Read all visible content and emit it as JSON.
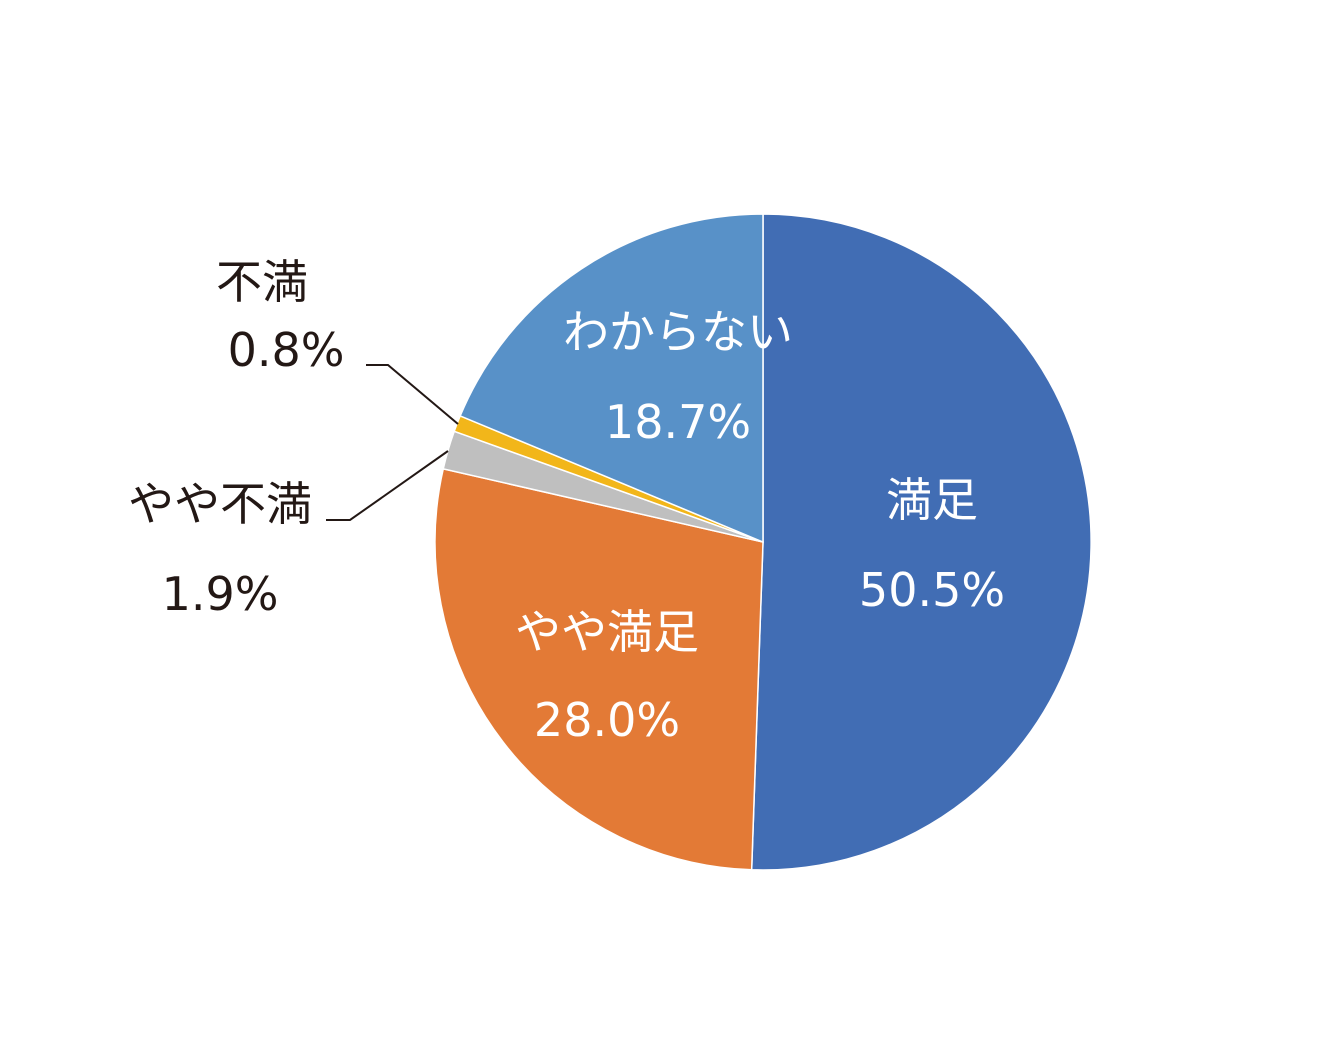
{
  "chart_data": {
    "type": "pie",
    "title": "",
    "start_angle": "12 o'clock",
    "direction": "clockwise",
    "slices": [
      {
        "label": "満足",
        "value": 50.5,
        "value_label": "50.5%",
        "color": "#416DB4",
        "label_position": "inside"
      },
      {
        "label": "やや満足",
        "value": 28.0,
        "value_label": "28.0%",
        "color": "#E37A36",
        "label_position": "inside"
      },
      {
        "label": "やや不満",
        "value": 1.9,
        "value_label": "1.9%",
        "color": "#BFBFBF",
        "label_position": "outside"
      },
      {
        "label": "不満",
        "value": 0.8,
        "value_label": "0.8%",
        "color": "#F2B61A",
        "label_position": "outside"
      },
      {
        "label": "わからない",
        "value": 18.7,
        "value_label": "18.7%",
        "color": "#5891C8",
        "label_position": "inside"
      }
    ]
  }
}
